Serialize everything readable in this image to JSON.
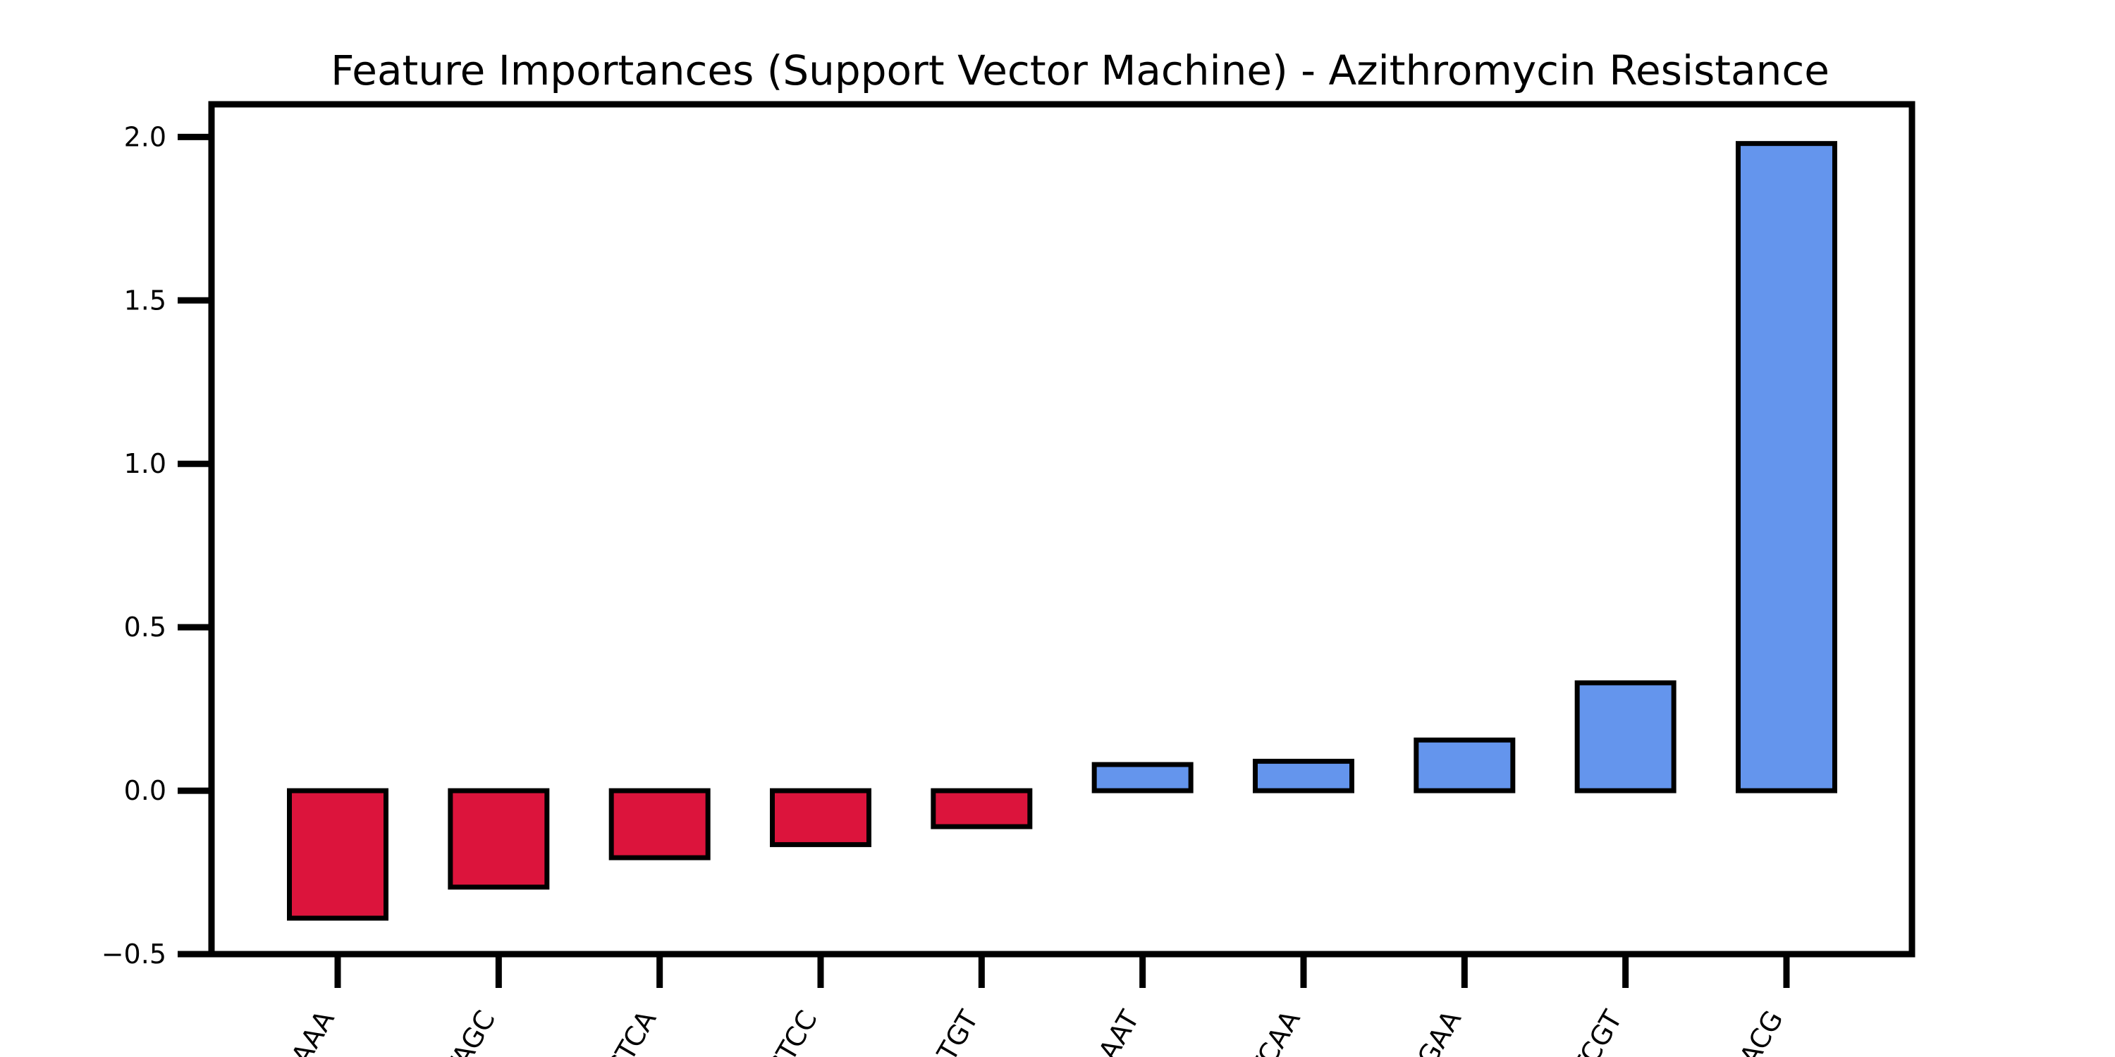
{
  "chart_data": {
    "type": "bar",
    "title": "Feature Importances (Support Vector Machine) - Azithromycin Resistance",
    "xlabel": "",
    "ylabel": "",
    "categories": [
      "AAA",
      "TAGC",
      "CTCA",
      "GTCC",
      "ATGT",
      "AAAT",
      "TCAA",
      "TGAA",
      "TCGT",
      "CACG"
    ],
    "values": [
      -0.39,
      -0.295,
      -0.205,
      -0.165,
      -0.11,
      0.08,
      0.09,
      0.155,
      0.33,
      1.98
    ],
    "ylim": [
      -0.5,
      2.1
    ],
    "yticks": [
      -0.5,
      0.0,
      0.5,
      1.0,
      1.5,
      2.0
    ],
    "ytick_labels": [
      "−0.5",
      "0.0",
      "0.5",
      "1.0",
      "1.5",
      "2.0"
    ],
    "grid": false,
    "colors": {
      "negative": "#DC143C",
      "positive": "#6495ED",
      "edge": "#000000",
      "axes": "#000000"
    }
  }
}
